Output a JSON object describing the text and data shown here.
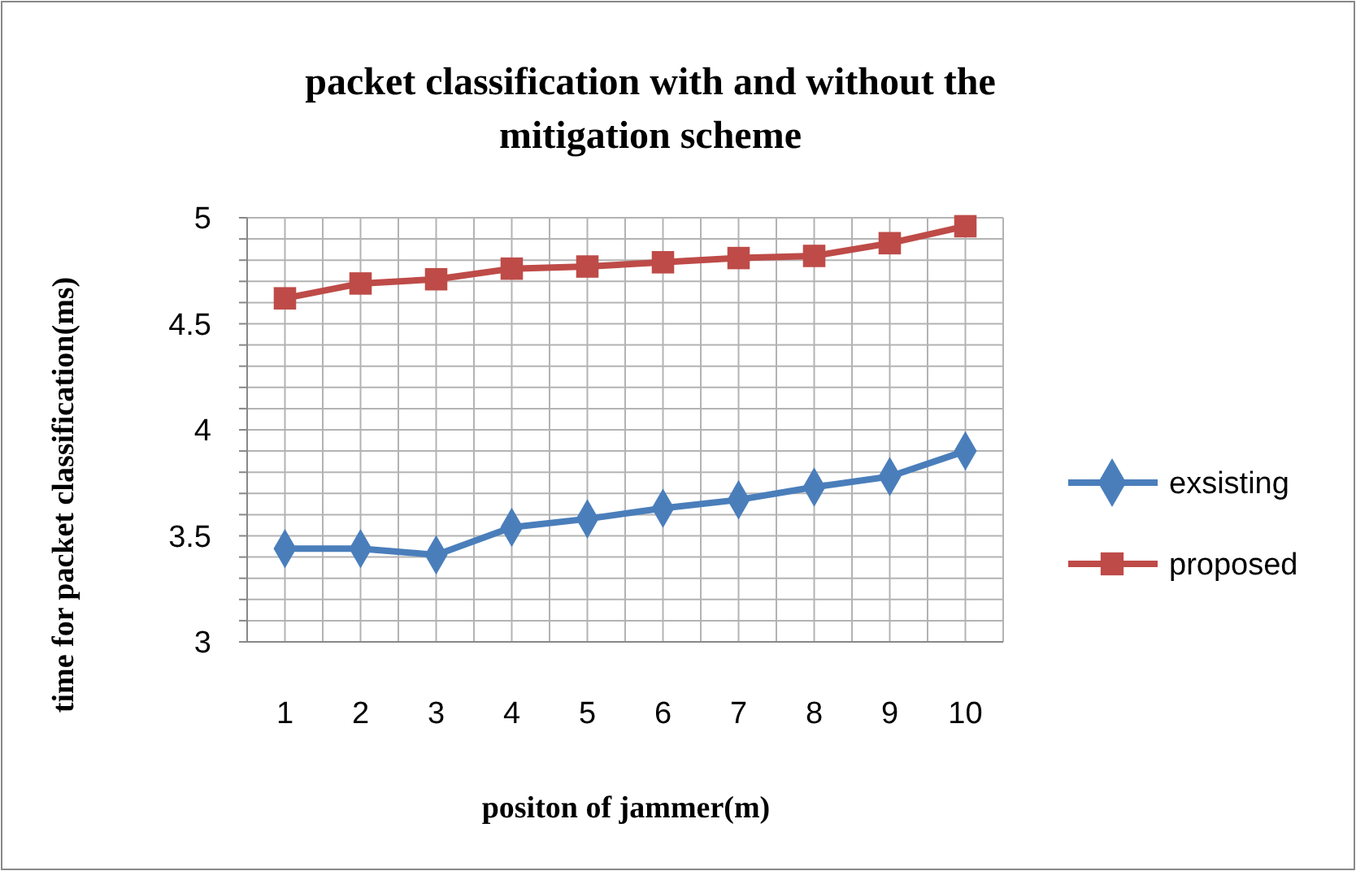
{
  "chart_data": {
    "type": "line",
    "title": "packet classification  with and without the mitigation scheme",
    "xlabel": "positon of jammer(m)",
    "ylabel": "time for packet classification(ms)",
    "categories": [
      "1",
      "2",
      "3",
      "4",
      "5",
      "6",
      "7",
      "8",
      "9",
      "10"
    ],
    "series": [
      {
        "name": "exsisting",
        "color": "#4a7ebb",
        "marker": "diamond",
        "values": [
          3.44,
          3.44,
          3.41,
          3.54,
          3.58,
          3.63,
          3.67,
          3.73,
          3.78,
          3.9
        ]
      },
      {
        "name": "proposed",
        "color": "#be4b48",
        "marker": "square",
        "values": [
          4.62,
          4.69,
          4.71,
          4.76,
          4.77,
          4.79,
          4.81,
          4.82,
          4.88,
          4.96
        ]
      }
    ],
    "ylim": [
      3,
      5
    ],
    "yticks": [
      3,
      {
        "value": 3.1,
        "label": null
      },
      {
        "value": 3.2,
        "label": null
      },
      {
        "value": 3.3,
        "label": null
      },
      {
        "value": 3.4,
        "label": null
      },
      3.5,
      {
        "value": 3.6,
        "label": null
      },
      {
        "value": 3.7,
        "label": null
      },
      {
        "value": 3.8,
        "label": null
      },
      {
        "value": 3.9,
        "label": null
      },
      4,
      {
        "value": 4.1,
        "label": null
      },
      {
        "value": 4.2,
        "label": null
      },
      {
        "value": 4.3,
        "label": null
      },
      {
        "value": 4.4,
        "label": null
      },
      4.5,
      {
        "value": 4.6,
        "label": null
      },
      {
        "value": 4.7,
        "label": null
      },
      {
        "value": 4.8,
        "label": null
      },
      {
        "value": 4.9,
        "label": null
      },
      5
    ],
    "grid": true,
    "legend": "right",
    "line_style": "solid"
  }
}
